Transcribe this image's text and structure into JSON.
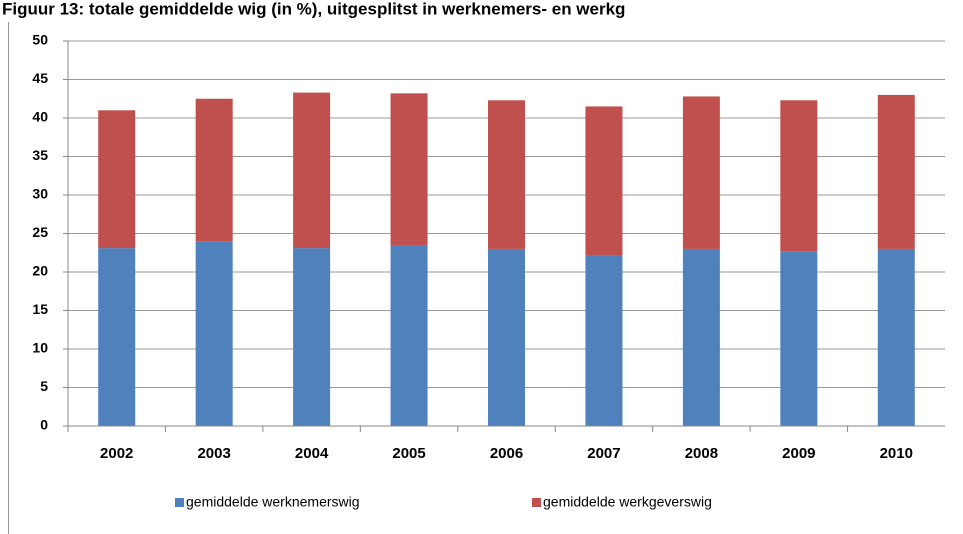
{
  "chart_data": {
    "type": "stacked_bar",
    "title": "Figuur 13: totale gemiddelde wig (in %), uitgesplitst in werknemers- en werkg",
    "categories": [
      "2002",
      "2003",
      "2004",
      "2005",
      "2006",
      "2007",
      "2008",
      "2009",
      "2010"
    ],
    "series": [
      {
        "name": "gemiddelde werknemerswig",
        "color": "#4f81bd",
        "values": [
          23.1,
          24.0,
          23.1,
          23.5,
          23.0,
          22.2,
          23.0,
          22.7,
          23.0
        ]
      },
      {
        "name": "gemiddelde werkgeverswig",
        "color": "#c0504d",
        "values": [
          17.9,
          18.5,
          20.2,
          19.7,
          19.3,
          19.3,
          19.8,
          19.6,
          20.0
        ]
      }
    ],
    "ylim": [
      0,
      50
    ],
    "yticks": [
      0,
      5,
      10,
      15,
      20,
      25,
      30,
      35,
      40,
      45,
      50
    ],
    "grid": true,
    "legend": "bottom"
  }
}
